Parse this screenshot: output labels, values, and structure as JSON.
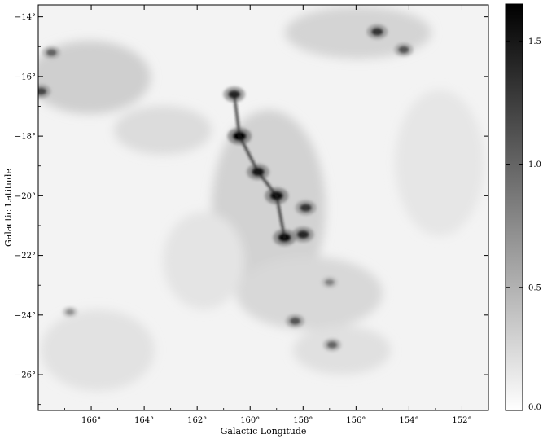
{
  "chart_data": {
    "type": "heatmap",
    "title": "",
    "xlabel": "Galactic Longitude",
    "ylabel": "Galactic Latitude",
    "xlim": [
      168,
      151
    ],
    "ylim": [
      -27.2,
      -13.6
    ],
    "x_ticks": [
      166,
      164,
      162,
      160,
      158,
      156,
      154,
      152
    ],
    "x_tick_labels": [
      "166°",
      "164°",
      "162°",
      "160°",
      "158°",
      "156°",
      "154°",
      "152°"
    ],
    "y_ticks": [
      -14,
      -16,
      -18,
      -20,
      -22,
      -24,
      -26
    ],
    "y_tick_labels": [
      "−14°",
      "−16°",
      "−18°",
      "−20°",
      "−22°",
      "−24°",
      "−26°"
    ],
    "colormap": "gray_r",
    "colorbar": {
      "range": [
        0,
        1.65
      ],
      "ticks": [
        0.0,
        0.5,
        1.0,
        1.5
      ],
      "tick_labels": [
        "0.0",
        "0.5",
        "1.0",
        "1.5"
      ]
    },
    "grid": false,
    "features": [
      {
        "l": 160.6,
        "b": -16.6,
        "intensity": 1.4
      },
      {
        "l": 160.4,
        "b": -18.0,
        "intensity": 1.65
      },
      {
        "l": 159.7,
        "b": -19.2,
        "intensity": 1.5
      },
      {
        "l": 159.0,
        "b": -20.0,
        "intensity": 1.6
      },
      {
        "l": 158.7,
        "b": -21.4,
        "intensity": 1.55
      },
      {
        "l": 158.0,
        "b": -21.3,
        "intensity": 1.4
      },
      {
        "l": 157.9,
        "b": -20.4,
        "intensity": 1.3
      },
      {
        "l": 158.3,
        "b": -24.2,
        "intensity": 1.1
      },
      {
        "l": 156.9,
        "b": -25.0,
        "intensity": 1.0
      },
      {
        "l": 155.2,
        "b": -14.5,
        "intensity": 1.3
      },
      {
        "l": 154.2,
        "b": -15.1,
        "intensity": 1.1
      },
      {
        "l": 167.5,
        "b": -15.2,
        "intensity": 1.0
      },
      {
        "l": 167.9,
        "b": -16.5,
        "intensity": 1.2
      },
      {
        "l": 166.8,
        "b": -23.9,
        "intensity": 0.7
      },
      {
        "l": 157.0,
        "b": -22.9,
        "intensity": 0.8
      }
    ]
  }
}
